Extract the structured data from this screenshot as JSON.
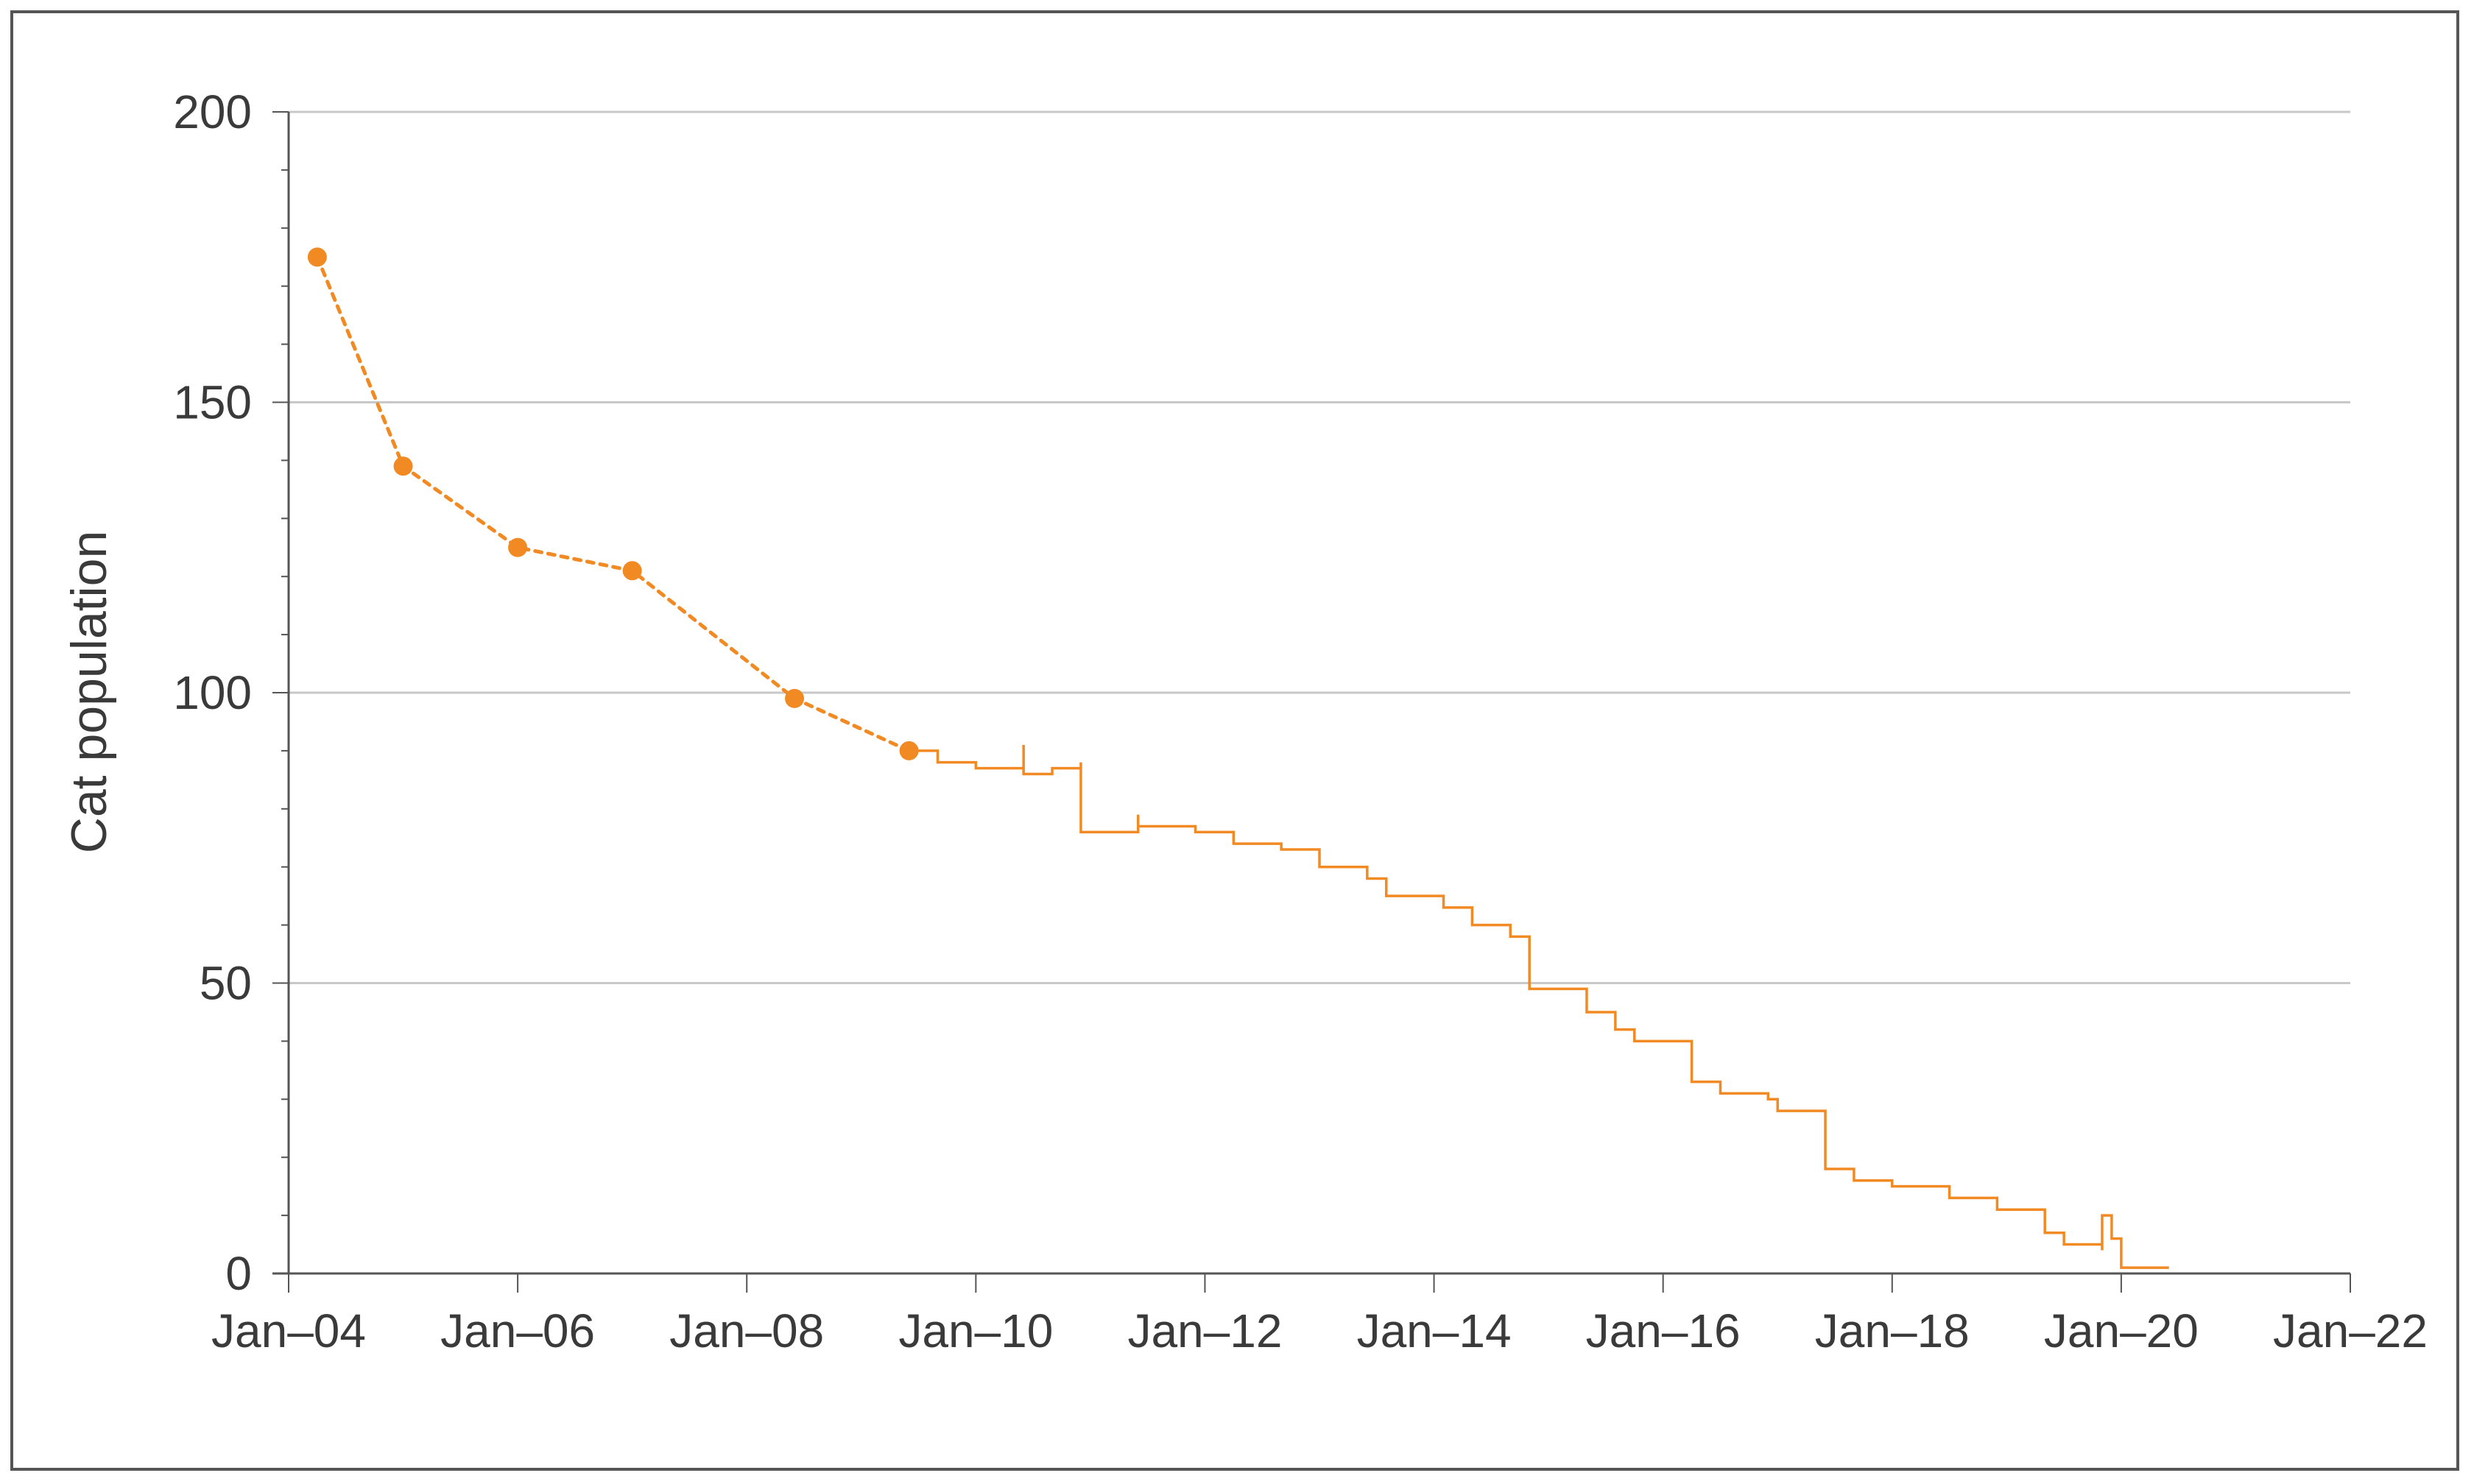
{
  "chart_data": {
    "type": "line",
    "title": "",
    "xlabel": "",
    "ylabel": "Cat population",
    "xlim": [
      "2004-01",
      "2022-01"
    ],
    "ylim": [
      0,
      200
    ],
    "grid": true,
    "x_ticks": [
      "Jan–04",
      "Jan–06",
      "Jan–08",
      "Jan–10",
      "Jan–12",
      "Jan–14",
      "Jan–16",
      "Jan–18",
      "Jan–20",
      "Jan–22"
    ],
    "y_ticks": [
      0,
      50,
      100,
      150,
      200
    ],
    "colors": {
      "series": "#f28a24",
      "grid": "#c8c8c8",
      "axis": "#555555"
    },
    "series": [
      {
        "style": "dotted-with-markers",
        "x": [
          "2004-04",
          "2005-01",
          "2006-01",
          "2007-01",
          "2008-06",
          "2009-06"
        ],
        "y": [
          175,
          139,
          125,
          121,
          99,
          90
        ]
      },
      {
        "style": "solid-step",
        "x": [
          "2009-06",
          "2009-09",
          "2010-01",
          "2010-06",
          "2010-06",
          "2010-06",
          "2010-09",
          "2010-12",
          "2010-12",
          "2011-05",
          "2011-06",
          "2011-06",
          "2011-07",
          "2011-12",
          "2012-04",
          "2012-09",
          "2013-01",
          "2013-06",
          "2013-08",
          "2014-02",
          "2014-05",
          "2014-09",
          "2014-11",
          "2014-11",
          "2015-05",
          "2015-08",
          "2015-10",
          "2016-04",
          "2016-07",
          "2016-12",
          "2017-01",
          "2017-04",
          "2017-06",
          "2017-09",
          "2018-01",
          "2018-07",
          "2018-09",
          "2018-12",
          "2019-05",
          "2019-07",
          "2019-11",
          "2019-11",
          "2019-12",
          "2020-01",
          "2020-06"
        ],
        "y": [
          90,
          88,
          87,
          86,
          91,
          86,
          87,
          88,
          76,
          76,
          79,
          77,
          77,
          76,
          74,
          73,
          70,
          68,
          65,
          63,
          60,
          58,
          53,
          49,
          45,
          42,
          40,
          33,
          31,
          30,
          28,
          28,
          18,
          16,
          15,
          13,
          13,
          11,
          7,
          5,
          4,
          10,
          6,
          1,
          1
        ]
      }
    ]
  }
}
